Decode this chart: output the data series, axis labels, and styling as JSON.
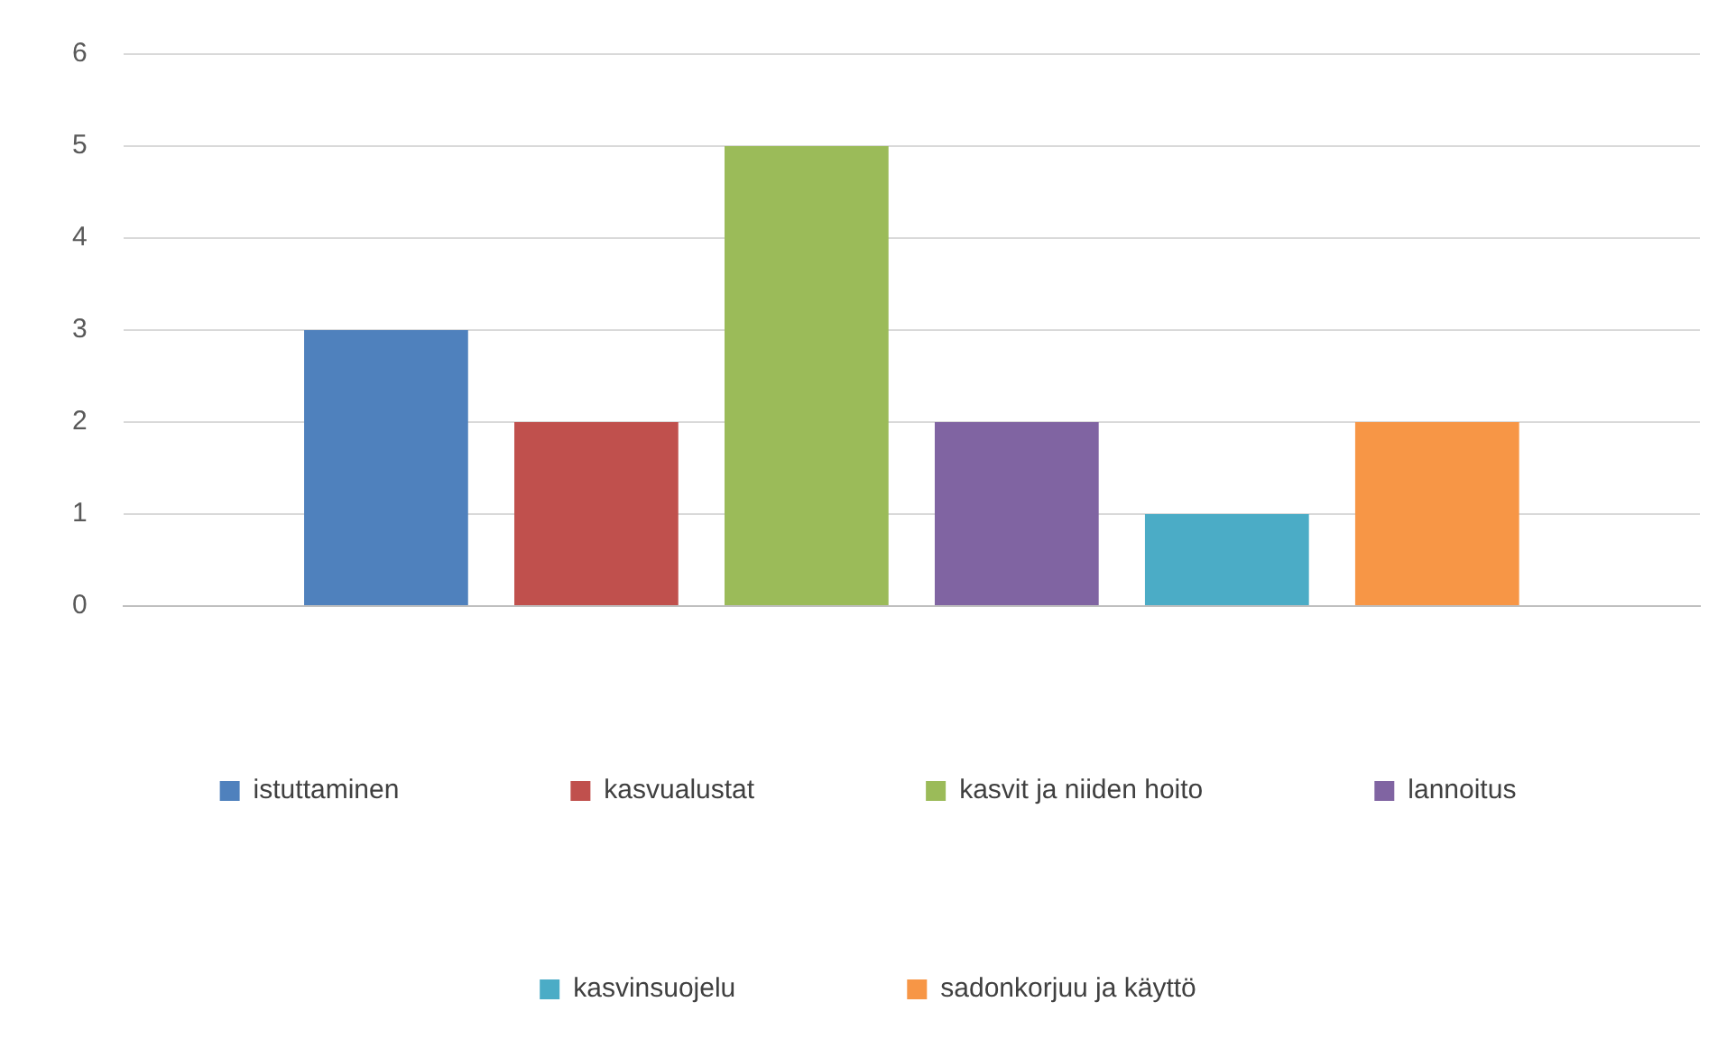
{
  "chart_data": {
    "type": "bar",
    "categories": [
      null
    ],
    "series": [
      {
        "name": "istuttaminen",
        "color": "#4f81bd",
        "values": [
          3
        ]
      },
      {
        "name": "kasvualustat",
        "color": "#c0504d",
        "values": [
          2
        ]
      },
      {
        "name": "kasvit ja niiden hoito",
        "color": "#9bbb59",
        "values": [
          5
        ]
      },
      {
        "name": "lannoitus",
        "color": "#8064a2",
        "values": [
          2
        ]
      },
      {
        "name": "kasvinsuojelu",
        "color": "#4bacc6",
        "values": [
          1
        ]
      },
      {
        "name": "sadonkorjuu ja käyttö",
        "color": "#f79646",
        "values": [
          2
        ]
      }
    ],
    "ylim": [
      0,
      6
    ],
    "yticks": [
      0,
      1,
      2,
      3,
      4,
      5,
      6
    ],
    "grid": "y",
    "legend": "bottom"
  }
}
